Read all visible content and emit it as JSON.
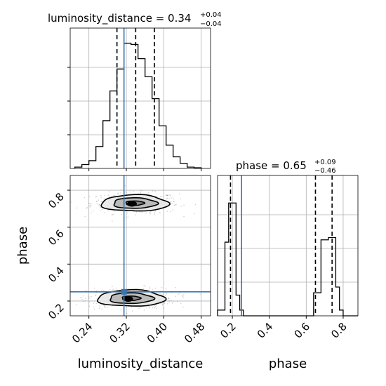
{
  "chart_data": {
    "type": "corner",
    "parameters": [
      "luminosity_distance",
      "phase"
    ],
    "colors": {
      "truth": "#3b75af",
      "hist": "#000000",
      "points": "#7f7f7f"
    },
    "titles": {
      "luminosity_distance": {
        "text": "luminosity_distance = 0.34",
        "sup": "+0.04",
        "sub": "−0.04"
      },
      "phase": {
        "text": "phase = 0.65",
        "sup": "+0.09",
        "sub": "−0.46"
      }
    },
    "xlabel_left": "luminosity_distance",
    "xlabel_right": "phase",
    "ylabel_lower": "phase",
    "truths": {
      "luminosity_distance": 0.315,
      "phase": 0.25
    },
    "ld_axis": {
      "range": [
        0.2,
        0.5
      ],
      "ticks": [
        "0.24",
        "0.32",
        "0.40",
        "0.48"
      ],
      "tick_values": [
        0.24,
        0.32,
        0.4,
        0.48
      ]
    },
    "phase_axis": {
      "range": [
        0.12,
        0.88
      ],
      "ticks": [
        "0.2",
        "0.4",
        "0.6",
        "0.8"
      ],
      "tick_values": [
        0.2,
        0.4,
        0.6,
        0.8
      ]
    },
    "ld_histogram": {
      "bin_edges": [
        0.21,
        0.225,
        0.24,
        0.255,
        0.27,
        0.285,
        0.3,
        0.315,
        0.33,
        0.345,
        0.36,
        0.375,
        0.39,
        0.405,
        0.42,
        0.435,
        0.45,
        0.465,
        0.48
      ],
      "counts": [
        0.01,
        0.03,
        0.06,
        0.17,
        0.37,
        0.6,
        0.77,
        0.97,
        0.96,
        0.85,
        0.71,
        0.54,
        0.33,
        0.18,
        0.09,
        0.04,
        0.01,
        0.005
      ],
      "quantiles": [
        0.3,
        0.34,
        0.38
      ]
    },
    "phase_histogram": {
      "bin_edges": [
        0.12,
        0.16,
        0.18,
        0.2,
        0.22,
        0.24,
        0.26,
        0.28,
        0.64,
        0.66,
        0.68,
        0.7,
        0.72,
        0.74,
        0.76,
        0.78,
        0.8,
        0.88
      ],
      "counts": [
        0.05,
        0.64,
        0.98,
        0.98,
        0.18,
        0.05,
        0.0,
        0.0,
        0.2,
        0.2,
        0.66,
        0.66,
        0.68,
        0.68,
        0.25,
        0.05,
        0.0
      ],
      "quantiles": [
        0.19,
        0.65,
        0.74
      ]
    },
    "joint_modes": [
      {
        "ld_center": 0.338,
        "phase_center": 0.73,
        "ld_sigma": 0.036,
        "phase_sigma": 0.022
      },
      {
        "ld_center": 0.33,
        "phase_center": 0.215,
        "ld_sigma": 0.036,
        "phase_sigma": 0.022
      }
    ]
  }
}
